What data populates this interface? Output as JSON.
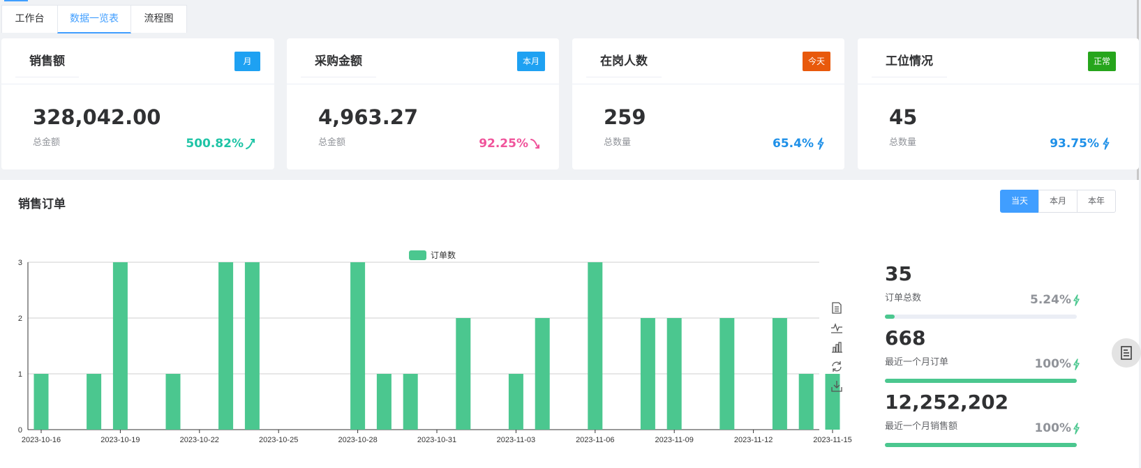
{
  "tabs": [
    {
      "label": "工作台"
    },
    {
      "label": "数据一览表"
    },
    {
      "label": "流程图"
    }
  ],
  "cards": [
    {
      "title": "销售额",
      "tag": "月",
      "tag_color": "#1ea1f2",
      "value": "328,042.00",
      "sub": "总金额",
      "rate": "500.82%",
      "rate_color": "#1fc4a6",
      "trend_icon": "trend-up-icon"
    },
    {
      "title": "采购金额",
      "tag": "本月",
      "tag_color": "#1ea1f2",
      "value": "4,963.27",
      "sub": "总金额",
      "rate": "92.25%",
      "rate_color": "#f0549b",
      "trend_icon": "trend-down-icon"
    },
    {
      "title": "在岗人数",
      "tag": "今天",
      "tag_color": "#e8590c",
      "value": "259",
      "sub": "总数量",
      "rate": "65.4%",
      "rate_color": "#1e90e8",
      "trend_icon": "bolt-icon"
    },
    {
      "title": "工位情况",
      "tag": "正常",
      "tag_color": "#26a51c",
      "value": "45",
      "sub": "总数量",
      "rate": "93.75%",
      "rate_color": "#1e90e8",
      "trend_icon": "bolt-icon"
    }
  ],
  "orders": {
    "title": "销售订单",
    "ranges": [
      {
        "label": "当天",
        "active": true
      },
      {
        "label": "本月",
        "active": false
      },
      {
        "label": "本年",
        "active": false
      }
    ]
  },
  "chart_data": {
    "type": "bar",
    "legend": "订单数",
    "color": "#4bc78f",
    "categories": [
      "2023-10-16",
      "2023-10-17",
      "2023-10-18",
      "2023-10-19",
      "2023-10-20",
      "2023-10-21",
      "2023-10-22",
      "2023-10-23",
      "2023-10-24",
      "2023-10-25",
      "2023-10-26",
      "2023-10-27",
      "2023-10-28",
      "2023-10-29",
      "2023-10-30",
      "2023-10-31",
      "2023-11-01",
      "2023-11-02",
      "2023-11-03",
      "2023-11-04",
      "2023-11-05",
      "2023-11-06",
      "2023-11-07",
      "2023-11-08",
      "2023-11-09",
      "2023-11-10",
      "2023-11-11",
      "2023-11-12",
      "2023-11-13",
      "2023-11-14",
      "2023-11-15"
    ],
    "values": [
      1,
      0,
      1,
      3,
      0,
      1,
      0,
      3,
      3,
      0,
      0,
      0,
      3,
      1,
      1,
      0,
      2,
      0,
      1,
      2,
      0,
      3,
      0,
      2,
      2,
      0,
      2,
      0,
      2,
      1,
      1
    ],
    "xticks": [
      "2023-10-16",
      "2023-10-19",
      "2023-10-22",
      "2023-10-25",
      "2023-10-28",
      "2023-10-31",
      "2023-11-03",
      "2023-11-06",
      "2023-11-09",
      "2023-11-12",
      "2023-11-15"
    ],
    "ylim": [
      0,
      3
    ],
    "yticks": [
      0,
      1,
      2,
      3
    ],
    "grid": true,
    "legend_position": "top-center"
  },
  "stats": [
    {
      "value": "35",
      "label": "订单总数",
      "pct": "5.24%",
      "fill": 0.0524
    },
    {
      "value": "668",
      "label": "最近一个月订单",
      "pct": "100%",
      "fill": 1.0
    },
    {
      "value": "12,252,202",
      "label": "最近一个月销售额",
      "pct": "100%",
      "fill": 1.0
    }
  ]
}
